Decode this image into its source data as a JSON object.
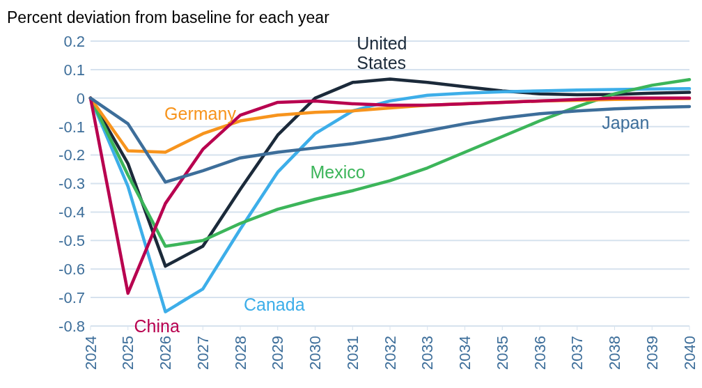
{
  "chart_data": {
    "type": "line",
    "title": "Percent deviation from baseline for each year",
    "categories": [
      "2024",
      "2025",
      "2026",
      "2027",
      "2028",
      "2029",
      "2030",
      "2031",
      "2032",
      "2033",
      "2034",
      "2035",
      "2036",
      "2037",
      "2038",
      "2039",
      "2040"
    ],
    "series": [
      {
        "name": "United States",
        "color": "#1b2a3a",
        "values": [
          0,
          -0.23,
          -0.59,
          -0.52,
          -0.32,
          -0.13,
          0,
          0.055,
          0.067,
          0.055,
          0.04,
          0.025,
          0.015,
          0.012,
          0.013,
          0.017,
          0.02
        ]
      },
      {
        "name": "Canada",
        "color": "#3daee9",
        "values": [
          0,
          -0.31,
          -0.75,
          -0.67,
          -0.46,
          -0.26,
          -0.125,
          -0.045,
          -0.01,
          0.01,
          0.017,
          0.022,
          0.025,
          0.028,
          0.03,
          0.032,
          0.033
        ]
      },
      {
        "name": "Mexico",
        "color": "#3cb55a",
        "values": [
          0,
          -0.27,
          -0.52,
          -0.5,
          -0.44,
          -0.39,
          -0.355,
          -0.325,
          -0.29,
          -0.245,
          -0.19,
          -0.135,
          -0.08,
          -0.03,
          0.015,
          0.045,
          0.065
        ]
      },
      {
        "name": "Germany",
        "color": "#f7941d",
        "values": [
          0,
          -0.185,
          -0.19,
          -0.125,
          -0.08,
          -0.06,
          -0.05,
          -0.045,
          -0.035,
          -0.025,
          -0.02,
          -0.015,
          -0.01,
          -0.008,
          -0.005,
          -0.003,
          -0.002
        ]
      },
      {
        "name": "China",
        "color": "#b8004f",
        "values": [
          0,
          -0.685,
          -0.37,
          -0.18,
          -0.06,
          -0.015,
          -0.01,
          -0.02,
          -0.025,
          -0.025,
          -0.02,
          -0.015,
          -0.01,
          -0.005,
          0,
          0,
          0
        ]
      },
      {
        "name": "Japan",
        "color": "#3d6e9a",
        "values": [
          0,
          -0.09,
          -0.295,
          -0.255,
          -0.21,
          -0.19,
          -0.175,
          -0.16,
          -0.14,
          -0.115,
          -0.09,
          -0.07,
          -0.055,
          -0.045,
          -0.038,
          -0.033,
          -0.03
        ]
      }
    ],
    "ylim": [
      -0.8,
      0.2
    ],
    "yticks": [
      -0.8,
      -0.7,
      -0.6,
      -0.5,
      -0.4,
      -0.3,
      -0.2,
      -0.1,
      0,
      0.1,
      0.2
    ],
    "grid": "y",
    "legend": false,
    "marker": "none",
    "line_style": "solid"
  }
}
